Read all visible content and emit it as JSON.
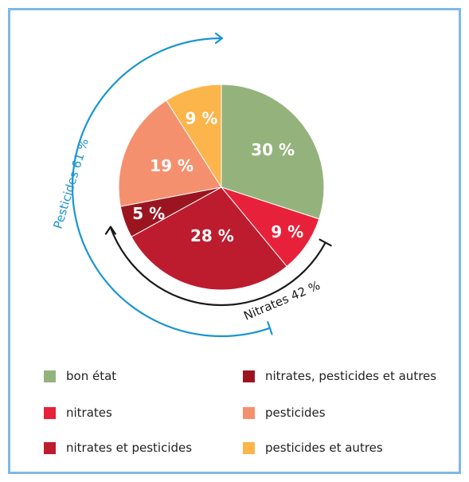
{
  "chart_data": {
    "type": "pie",
    "categories": [
      "bon état",
      "nitrates",
      "nitrates et pesticides",
      "nitrates, pesticides et autres",
      "pesticides",
      "pesticides et autres"
    ],
    "values": [
      30,
      9,
      28,
      5,
      19,
      9
    ],
    "labels": [
      "30 %",
      "9 %",
      "28 %",
      "5 %",
      "19 %",
      "9 %"
    ],
    "colors": [
      "#94b37c",
      "#e8213a",
      "#bd1c2f",
      "#9b1521",
      "#f5906f",
      "#fbb54a"
    ],
    "legend_position": "bottom",
    "annotations": {
      "pesticides": {
        "label": "Pesticides 61 %",
        "color": "#1a95d1"
      },
      "nitrates": {
        "label": "Nitrates 42 %",
        "color": "#1a1a1a",
        "end_color": "#1a95d1"
      }
    }
  },
  "legend": {
    "items": [
      {
        "label": "bon état",
        "color": "#94b37c"
      },
      {
        "label": "nitrates, pesticides et autres",
        "color": "#9b1521"
      },
      {
        "label": "nitrates",
        "color": "#e8213a"
      },
      {
        "label": "pesticides",
        "color": "#f5906f"
      },
      {
        "label": "nitrates et pesticides",
        "color": "#bd1c2f"
      },
      {
        "label": "pesticides et autres",
        "color": "#fbb54a"
      }
    ]
  }
}
